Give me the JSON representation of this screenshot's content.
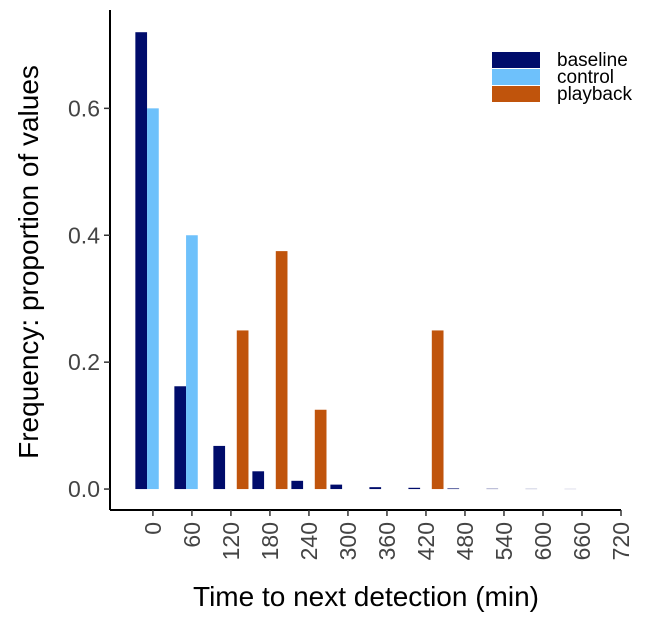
{
  "chart_data": {
    "type": "bar",
    "x_label": "Time to next detection (min)",
    "y_label": "Frequency: proportion of values",
    "x": [
      0,
      60,
      120,
      180,
      240,
      300,
      360,
      420,
      480,
      540,
      600,
      660
    ],
    "series": [
      {
        "name": "baseline",
        "color": "#000c6b",
        "values": [
          0.72,
          0.162,
          0.068,
          0.028,
          0.013,
          0.007,
          0.003,
          0.002,
          0.001,
          0.0005,
          0.0003,
          0.0002
        ]
      },
      {
        "name": "control",
        "color": "#6ec1fb",
        "values": [
          0.6,
          0.4,
          0,
          0,
          0,
          0,
          0,
          0,
          0,
          0,
          0,
          0
        ]
      },
      {
        "name": "playback",
        "color": "#c0540c",
        "values": [
          0,
          0,
          0.25,
          0.375,
          0.125,
          0,
          0,
          0.25,
          0,
          0,
          0,
          0
        ]
      }
    ],
    "xlim": [
      -66,
      720
    ],
    "xticks": [
      0,
      60,
      120,
      180,
      240,
      300,
      360,
      420,
      480,
      540,
      600,
      660,
      720
    ],
    "ylim": [
      -0.033,
      0.755
    ],
    "yticks": [
      {
        "value": 0,
        "label": "0.0"
      },
      0.2,
      0.4,
      0.6
    ],
    "bar_width": 18,
    "legend": "top-right",
    "grid": false
  }
}
